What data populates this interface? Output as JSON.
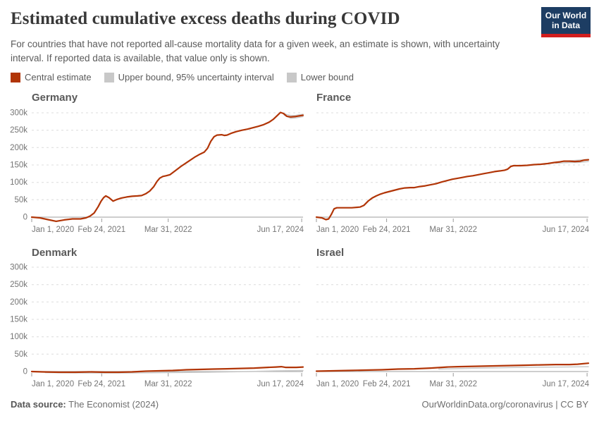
{
  "header": {
    "title": "Estimated cumulative excess deaths during COVID",
    "subtitle": "For countries that have not reported all-cause mortality data for a given week, an estimate is shown, with uncertainty interval. If reported data is available, that value only is shown.",
    "logo_line1": "Our World",
    "logo_line2": "in Data"
  },
  "legend": [
    {
      "label": "Central estimate",
      "color": "#b13507"
    },
    {
      "label": "Upper bound, 95% uncertainty interval",
      "color": "#c8c8c8"
    },
    {
      "label": "Lower bound",
      "color": "#c8c8c8"
    }
  ],
  "footer": {
    "source_label": "Data source:",
    "source_value": " The Economist (2024)",
    "credit_link": "OurWorldinData.org/coronavirus",
    "credit_license": " | CC BY"
  },
  "colors": {
    "central": "#b13507",
    "bound": "#c9c9c9",
    "grid": "#dcdcdc",
    "axis": "#b0b0b0",
    "tick_text": "#757575"
  },
  "axes": {
    "y_tick_values": [
      0,
      50,
      100,
      150,
      200,
      250,
      300
    ],
    "y_tick_labels": [
      "0",
      "50k",
      "100k",
      "150k",
      "200k",
      "250k",
      "300k"
    ],
    "x_ticks": [
      {
        "t": 0.0,
        "label": "Jan 1, 2020"
      },
      {
        "t": 0.258,
        "label": "Feb 24, 2021"
      },
      {
        "t": 0.503,
        "label": "Mar 31, 2022"
      },
      {
        "t": 0.995,
        "label": "Jun 17, 2024"
      }
    ],
    "x_range_note": "x axis is time from Jan 1, 2020 to Jun 17, 2024; t = fraction of that span",
    "unit": "deaths (k = thousands)"
  },
  "chart_data": [
    {
      "type": "line",
      "title": "Germany",
      "ylim": [
        -15,
        310
      ],
      "series": [
        {
          "name": "Central estimate",
          "points": [
            [
              0,
              0
            ],
            [
              0.03,
              -2
            ],
            [
              0.06,
              -7
            ],
            [
              0.09,
              -12
            ],
            [
              0.12,
              -8
            ],
            [
              0.15,
              -5
            ],
            [
              0.18,
              -5
            ],
            [
              0.2,
              -2
            ],
            [
              0.215,
              3
            ],
            [
              0.23,
              12
            ],
            [
              0.245,
              30
            ],
            [
              0.255,
              45
            ],
            [
              0.265,
              56
            ],
            [
              0.273,
              61
            ],
            [
              0.285,
              56
            ],
            [
              0.3,
              46
            ],
            [
              0.315,
              51
            ],
            [
              0.33,
              55
            ],
            [
              0.35,
              58
            ],
            [
              0.37,
              60
            ],
            [
              0.39,
              61
            ],
            [
              0.405,
              62
            ],
            [
              0.42,
              67
            ],
            [
              0.435,
              75
            ],
            [
              0.45,
              88
            ],
            [
              0.462,
              103
            ],
            [
              0.472,
              112
            ],
            [
              0.483,
              117
            ],
            [
              0.495,
              119
            ],
            [
              0.51,
              122
            ],
            [
              0.53,
              134
            ],
            [
              0.55,
              146
            ],
            [
              0.575,
              159
            ],
            [
              0.6,
              172
            ],
            [
              0.62,
              181
            ],
            [
              0.636,
              187
            ],
            [
              0.648,
              198
            ],
            [
              0.66,
              218
            ],
            [
              0.672,
              231
            ],
            [
              0.683,
              236
            ],
            [
              0.7,
              237
            ],
            [
              0.71,
              235
            ],
            [
              0.72,
              236
            ],
            [
              0.735,
              241
            ],
            [
              0.755,
              246
            ],
            [
              0.775,
              250
            ],
            [
              0.795,
              253
            ],
            [
              0.815,
              257
            ],
            [
              0.835,
              261
            ],
            [
              0.855,
              266
            ],
            [
              0.875,
              273
            ],
            [
              0.89,
              281
            ],
            [
              0.905,
              292
            ],
            [
              0.917,
              301
            ],
            [
              0.928,
              298
            ],
            [
              0.94,
              290
            ],
            [
              0.955,
              288
            ],
            [
              0.97,
              289
            ],
            [
              0.985,
              291
            ],
            [
              1,
              293
            ]
          ]
        },
        {
          "name": "Upper bound, 95% uncertainty interval",
          "points": [
            [
              0.93,
              297
            ],
            [
              0.955,
              292
            ],
            [
              0.97,
              292
            ],
            [
              1,
              296
            ]
          ]
        },
        {
          "name": "Lower bound",
          "points": [
            [
              0.93,
              294
            ],
            [
              0.955,
              284
            ],
            [
              0.97,
              285
            ],
            [
              1,
              289
            ]
          ]
        }
      ]
    },
    {
      "type": "line",
      "title": "France",
      "ylim": [
        -15,
        310
      ],
      "series": [
        {
          "name": "Central estimate",
          "points": [
            [
              0,
              0
            ],
            [
              0.02,
              -2
            ],
            [
              0.035,
              -7
            ],
            [
              0.045,
              -5
            ],
            [
              0.055,
              8
            ],
            [
              0.065,
              24
            ],
            [
              0.075,
              27
            ],
            [
              0.1,
              27
            ],
            [
              0.13,
              27
            ],
            [
              0.16,
              29
            ],
            [
              0.175,
              34
            ],
            [
              0.19,
              46
            ],
            [
              0.205,
              55
            ],
            [
              0.22,
              61
            ],
            [
              0.235,
              66
            ],
            [
              0.25,
              70
            ],
            [
              0.265,
              73
            ],
            [
              0.285,
              77
            ],
            [
              0.305,
              81
            ],
            [
              0.325,
              84
            ],
            [
              0.345,
              85
            ],
            [
              0.36,
              85
            ],
            [
              0.38,
              88
            ],
            [
              0.4,
              90
            ],
            [
              0.42,
              93
            ],
            [
              0.44,
              96
            ],
            [
              0.46,
              101
            ],
            [
              0.48,
              105
            ],
            [
              0.5,
              109
            ],
            [
              0.515,
              111
            ],
            [
              0.535,
              114
            ],
            [
              0.555,
              117
            ],
            [
              0.575,
              119
            ],
            [
              0.595,
              122
            ],
            [
              0.615,
              125
            ],
            [
              0.635,
              128
            ],
            [
              0.655,
              131
            ],
            [
              0.675,
              133
            ],
            [
              0.692,
              135
            ],
            [
              0.703,
              138
            ],
            [
              0.715,
              146
            ],
            [
              0.725,
              148
            ],
            [
              0.75,
              148
            ],
            [
              0.775,
              149
            ],
            [
              0.8,
              151
            ],
            [
              0.825,
              152
            ],
            [
              0.85,
              154
            ],
            [
              0.875,
              157
            ],
            [
              0.895,
              159
            ],
            [
              0.91,
              161
            ],
            [
              0.93,
              161
            ],
            [
              0.95,
              160
            ],
            [
              0.97,
              161
            ],
            [
              0.985,
              164
            ],
            [
              1,
              165
            ]
          ]
        },
        {
          "name": "Upper bound, 95% uncertainty interval",
          "points": [
            [
              0.88,
              158
            ],
            [
              0.93,
              162
            ],
            [
              1,
              166
            ]
          ]
        },
        {
          "name": "Lower bound",
          "points": [
            [
              0.88,
              155
            ],
            [
              0.93,
              157
            ],
            [
              0.96,
              157
            ],
            [
              1,
              160
            ]
          ]
        }
      ]
    },
    {
      "type": "line",
      "title": "Denmark",
      "ylim": [
        -15,
        310
      ],
      "series": [
        {
          "name": "Central estimate",
          "points": [
            [
              0,
              0
            ],
            [
              0.04,
              -1
            ],
            [
              0.1,
              -2
            ],
            [
              0.16,
              -2
            ],
            [
              0.22,
              -1
            ],
            [
              0.27,
              -2
            ],
            [
              0.32,
              -2
            ],
            [
              0.37,
              -1
            ],
            [
              0.42,
              1
            ],
            [
              0.47,
              2
            ],
            [
              0.52,
              3
            ],
            [
              0.57,
              5
            ],
            [
              0.62,
              6
            ],
            [
              0.67,
              7
            ],
            [
              0.72,
              8
            ],
            [
              0.77,
              9
            ],
            [
              0.82,
              10
            ],
            [
              0.87,
              12
            ],
            [
              0.9,
              13
            ],
            [
              0.92,
              14
            ],
            [
              0.935,
              12
            ],
            [
              0.955,
              12
            ],
            [
              0.975,
              12
            ],
            [
              1,
              13
            ]
          ]
        },
        {
          "name": "Lower bound",
          "points": [
            [
              0.05,
              -3
            ],
            [
              0.2,
              -4
            ],
            [
              0.35,
              -4
            ],
            [
              0.5,
              -3
            ],
            [
              0.65,
              -2
            ],
            [
              0.8,
              0
            ],
            [
              0.9,
              2
            ],
            [
              1,
              3
            ]
          ]
        }
      ]
    },
    {
      "type": "line",
      "title": "Israel",
      "ylim": [
        -15,
        310
      ],
      "series": [
        {
          "name": "Central estimate",
          "points": [
            [
              0,
              1
            ],
            [
              0.06,
              2
            ],
            [
              0.12,
              3
            ],
            [
              0.18,
              4
            ],
            [
              0.24,
              5
            ],
            [
              0.3,
              7
            ],
            [
              0.36,
              8
            ],
            [
              0.42,
              10
            ],
            [
              0.48,
              13
            ],
            [
              0.52,
              14
            ],
            [
              0.58,
              15
            ],
            [
              0.64,
              16
            ],
            [
              0.7,
              17
            ],
            [
              0.76,
              18
            ],
            [
              0.82,
              19
            ],
            [
              0.88,
              20
            ],
            [
              0.93,
              20
            ],
            [
              0.96,
              21
            ],
            [
              1,
              24
            ]
          ]
        },
        {
          "name": "Lower bound",
          "points": [
            [
              0.45,
              7
            ],
            [
              0.6,
              10
            ],
            [
              0.75,
              12
            ],
            [
              0.9,
              13
            ],
            [
              1,
              14
            ]
          ]
        }
      ]
    }
  ]
}
